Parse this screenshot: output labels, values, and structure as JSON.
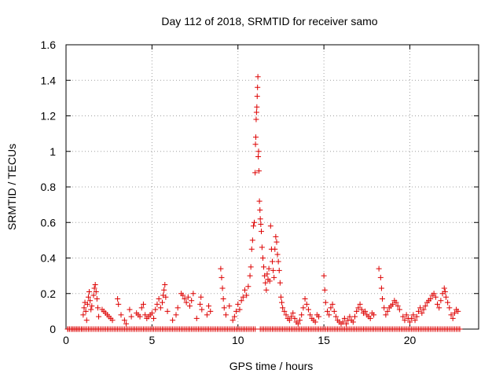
{
  "chart_data": {
    "type": "scatter",
    "title": "Day 112 of 2018, SRMTID for receiver samo",
    "xlabel": "GPS time / hours",
    "ylabel": "SRMTID / TECUs",
    "xlim": [
      0,
      24
    ],
    "ylim": [
      0,
      1.6
    ],
    "xticks": [
      0,
      5,
      10,
      15,
      20
    ],
    "xtick_labels": [
      "0",
      "5",
      "10",
      "15",
      "20"
    ],
    "yticks": [
      0,
      0.2,
      0.4,
      0.6,
      0.8,
      1.0,
      1.2,
      1.4,
      1.6
    ],
    "ytick_labels": [
      "0",
      "0.2",
      "0.4",
      "0.6",
      "0.8",
      "1",
      "1.2",
      "1.4",
      "1.6"
    ],
    "grid": true,
    "marker": "+",
    "color": "#dd0000",
    "series": [
      {
        "name": "SRMTID",
        "points": [
          [
            0.1,
            0
          ],
          [
            0.2,
            0
          ],
          [
            0.3,
            0
          ],
          [
            0.4,
            0
          ],
          [
            0.5,
            0
          ],
          [
            0.6,
            0
          ],
          [
            0.7,
            0
          ],
          [
            0.8,
            0
          ],
          [
            0.9,
            0
          ],
          [
            1.0,
            0.08
          ],
          [
            1.05,
            0.12
          ],
          [
            1.1,
            0.15
          ],
          [
            1.15,
            0.1
          ],
          [
            1.2,
            0.05
          ],
          [
            1.25,
            0.14
          ],
          [
            1.3,
            0.18
          ],
          [
            1.35,
            0.21
          ],
          [
            1.4,
            0.16
          ],
          [
            1.45,
            0.11
          ],
          [
            1.5,
            0.13
          ],
          [
            1.6,
            0.19
          ],
          [
            1.65,
            0.23
          ],
          [
            1.7,
            0.25
          ],
          [
            1.75,
            0.21
          ],
          [
            1.8,
            0.17
          ],
          [
            1.85,
            0.12
          ],
          [
            1.9,
            0.07
          ],
          [
            2.1,
            0.11
          ],
          [
            2.2,
            0.1
          ],
          [
            2.3,
            0.09
          ],
          [
            2.4,
            0.08
          ],
          [
            2.5,
            0.07
          ],
          [
            2.6,
            0.06
          ],
          [
            2.7,
            0.05
          ],
          [
            3.0,
            0.17
          ],
          [
            3.05,
            0.14
          ],
          [
            3.2,
            0.08
          ],
          [
            3.4,
            0.05
          ],
          [
            3.5,
            0.03
          ],
          [
            3.7,
            0.11
          ],
          [
            3.8,
            0.07
          ],
          [
            4.1,
            0.09
          ],
          [
            4.2,
            0.08
          ],
          [
            4.3,
            0.07
          ],
          [
            4.4,
            0.12
          ],
          [
            4.5,
            0.14
          ],
          [
            4.6,
            0.08
          ],
          [
            4.7,
            0.06
          ],
          [
            4.8,
            0.07
          ],
          [
            4.9,
            0.08
          ],
          [
            5.0,
            0.09
          ],
          [
            5.1,
            0.06
          ],
          [
            5.2,
            0.11
          ],
          [
            5.3,
            0.14
          ],
          [
            5.4,
            0.17
          ],
          [
            5.5,
            0.12
          ],
          [
            5.6,
            0.15
          ],
          [
            5.65,
            0.19
          ],
          [
            5.7,
            0.22
          ],
          [
            5.75,
            0.25
          ],
          [
            5.8,
            0.18
          ],
          [
            5.9,
            0.1
          ],
          [
            6.2,
            0.05
          ],
          [
            6.4,
            0.08
          ],
          [
            6.5,
            0.12
          ],
          [
            6.7,
            0.2
          ],
          [
            6.8,
            0.19
          ],
          [
            6.9,
            0.17
          ],
          [
            7.0,
            0.15
          ],
          [
            7.1,
            0.18
          ],
          [
            7.2,
            0.13
          ],
          [
            7.3,
            0.16
          ],
          [
            7.4,
            0.2
          ],
          [
            7.6,
            0.06
          ],
          [
            7.8,
            0.14
          ],
          [
            7.85,
            0.18
          ],
          [
            7.9,
            0.11
          ],
          [
            8.2,
            0.08
          ],
          [
            8.3,
            0.13
          ],
          [
            8.4,
            0.1
          ],
          [
            9.0,
            0.34
          ],
          [
            9.05,
            0.29
          ],
          [
            9.1,
            0.23
          ],
          [
            9.15,
            0.17
          ],
          [
            9.2,
            0.12
          ],
          [
            9.3,
            0.08
          ],
          [
            9.5,
            0.13
          ],
          [
            9.7,
            0.05
          ],
          [
            9.8,
            0.07
          ],
          [
            9.9,
            0.1
          ],
          [
            10.0,
            0.14
          ],
          [
            10.1,
            0.11
          ],
          [
            10.2,
            0.16
          ],
          [
            10.3,
            0.18
          ],
          [
            10.4,
            0.22
          ],
          [
            10.5,
            0.19
          ],
          [
            10.6,
            0.24
          ],
          [
            10.7,
            0.3
          ],
          [
            10.75,
            0.35
          ],
          [
            10.8,
            0.45
          ],
          [
            10.85,
            0.5
          ],
          [
            10.9,
            0.58
          ],
          [
            10.95,
            0.6
          ],
          [
            11.0,
            0.88
          ],
          [
            11.02,
            1.04
          ],
          [
            11.04,
            1.08
          ],
          [
            11.06,
            1.18
          ],
          [
            11.08,
            1.22
          ],
          [
            11.1,
            1.25
          ],
          [
            11.12,
            1.31
          ],
          [
            11.14,
            1.36
          ],
          [
            11.16,
            1.42
          ],
          [
            11.18,
            0.97
          ],
          [
            11.2,
            1.0
          ],
          [
            11.22,
            0.89
          ],
          [
            11.25,
            0.72
          ],
          [
            11.28,
            0.67
          ],
          [
            11.3,
            0.62
          ],
          [
            11.33,
            0.59
          ],
          [
            11.36,
            0.55
          ],
          [
            11.4,
            0.46
          ],
          [
            11.45,
            0.4
          ],
          [
            11.5,
            0.35
          ],
          [
            11.55,
            0.3
          ],
          [
            11.6,
            0.26
          ],
          [
            11.65,
            0.22
          ],
          [
            11.7,
            0.31
          ],
          [
            11.75,
            0.28
          ],
          [
            11.8,
            0.34
          ],
          [
            11.85,
            0.27
          ],
          [
            11.9,
            0.58
          ],
          [
            11.95,
            0.45
          ],
          [
            12.0,
            0.38
          ],
          [
            12.05,
            0.33
          ],
          [
            12.1,
            0.29
          ],
          [
            12.15,
            0.45
          ],
          [
            12.2,
            0.52
          ],
          [
            12.25,
            0.49
          ],
          [
            12.3,
            0.42
          ],
          [
            12.35,
            0.38
          ],
          [
            12.4,
            0.33
          ],
          [
            12.45,
            0.26
          ],
          [
            12.5,
            0.18
          ],
          [
            12.55,
            0.15
          ],
          [
            12.6,
            0.12
          ],
          [
            12.7,
            0.1
          ],
          [
            12.8,
            0.08
          ],
          [
            12.9,
            0.06
          ],
          [
            13.0,
            0.05
          ],
          [
            13.1,
            0.07
          ],
          [
            13.2,
            0.09
          ],
          [
            13.3,
            0.06
          ],
          [
            13.4,
            0.04
          ],
          [
            13.5,
            0.03
          ],
          [
            13.6,
            0.05
          ],
          [
            13.7,
            0.08
          ],
          [
            13.8,
            0.12
          ],
          [
            13.9,
            0.17
          ],
          [
            14.0,
            0.14
          ],
          [
            14.1,
            0.11
          ],
          [
            14.2,
            0.08
          ],
          [
            14.3,
            0.06
          ],
          [
            14.4,
            0.05
          ],
          [
            14.5,
            0.04
          ],
          [
            14.6,
            0.08
          ],
          [
            14.7,
            0.07
          ],
          [
            15.0,
            0.3
          ],
          [
            15.05,
            0.22
          ],
          [
            15.1,
            0.15
          ],
          [
            15.2,
            0.1
          ],
          [
            15.3,
            0.08
          ],
          [
            15.4,
            0.12
          ],
          [
            15.5,
            0.14
          ],
          [
            15.6,
            0.1
          ],
          [
            15.7,
            0.07
          ],
          [
            15.8,
            0.05
          ],
          [
            15.9,
            0.04
          ],
          [
            16.0,
            0.03
          ],
          [
            16.1,
            0.04
          ],
          [
            16.2,
            0.06
          ],
          [
            16.3,
            0.03
          ],
          [
            16.4,
            0.05
          ],
          [
            16.5,
            0.07
          ],
          [
            16.6,
            0.05
          ],
          [
            16.7,
            0.04
          ],
          [
            16.8,
            0.07
          ],
          [
            16.9,
            0.1
          ],
          [
            17.0,
            0.12
          ],
          [
            17.1,
            0.14
          ],
          [
            17.2,
            0.11
          ],
          [
            17.3,
            0.09
          ],
          [
            17.4,
            0.1
          ],
          [
            17.5,
            0.08
          ],
          [
            17.6,
            0.07
          ],
          [
            17.7,
            0.06
          ],
          [
            17.8,
            0.09
          ],
          [
            17.9,
            0.08
          ],
          [
            18.2,
            0.34
          ],
          [
            18.3,
            0.29
          ],
          [
            18.35,
            0.23
          ],
          [
            18.4,
            0.17
          ],
          [
            18.5,
            0.12
          ],
          [
            18.6,
            0.08
          ],
          [
            18.7,
            0.1
          ],
          [
            18.8,
            0.12
          ],
          [
            18.9,
            0.13
          ],
          [
            19.0,
            0.14
          ],
          [
            19.1,
            0.16
          ],
          [
            19.2,
            0.15
          ],
          [
            19.3,
            0.13
          ],
          [
            19.4,
            0.11
          ],
          [
            19.6,
            0.07
          ],
          [
            19.7,
            0.05
          ],
          [
            19.8,
            0.08
          ],
          [
            19.9,
            0.06
          ],
          [
            20.0,
            0.04
          ],
          [
            20.1,
            0.06
          ],
          [
            20.2,
            0.08
          ],
          [
            20.3,
            0.05
          ],
          [
            20.4,
            0.07
          ],
          [
            20.5,
            0.1
          ],
          [
            20.6,
            0.12
          ],
          [
            20.7,
            0.09
          ],
          [
            20.8,
            0.11
          ],
          [
            20.9,
            0.13
          ],
          [
            21.0,
            0.15
          ],
          [
            21.1,
            0.16
          ],
          [
            21.2,
            0.17
          ],
          [
            21.3,
            0.19
          ],
          [
            21.4,
            0.2
          ],
          [
            21.5,
            0.18
          ],
          [
            21.6,
            0.14
          ],
          [
            21.7,
            0.12
          ],
          [
            21.8,
            0.16
          ],
          [
            21.9,
            0.2
          ],
          [
            22.0,
            0.23
          ],
          [
            22.05,
            0.21
          ],
          [
            22.1,
            0.18
          ],
          [
            22.2,
            0.15
          ],
          [
            22.3,
            0.12
          ],
          [
            22.4,
            0.08
          ],
          [
            22.5,
            0.06
          ],
          [
            22.6,
            0.09
          ],
          [
            22.7,
            0.11
          ],
          [
            22.8,
            0.1
          ],
          [
            22.9,
            0
          ]
        ]
      }
    ],
    "baseline_points": {
      "y": 0,
      "ranges": [
        [
          0.1,
          11.0
        ],
        [
          11.3,
          22.9
        ]
      ],
      "step": 0.1
    }
  }
}
